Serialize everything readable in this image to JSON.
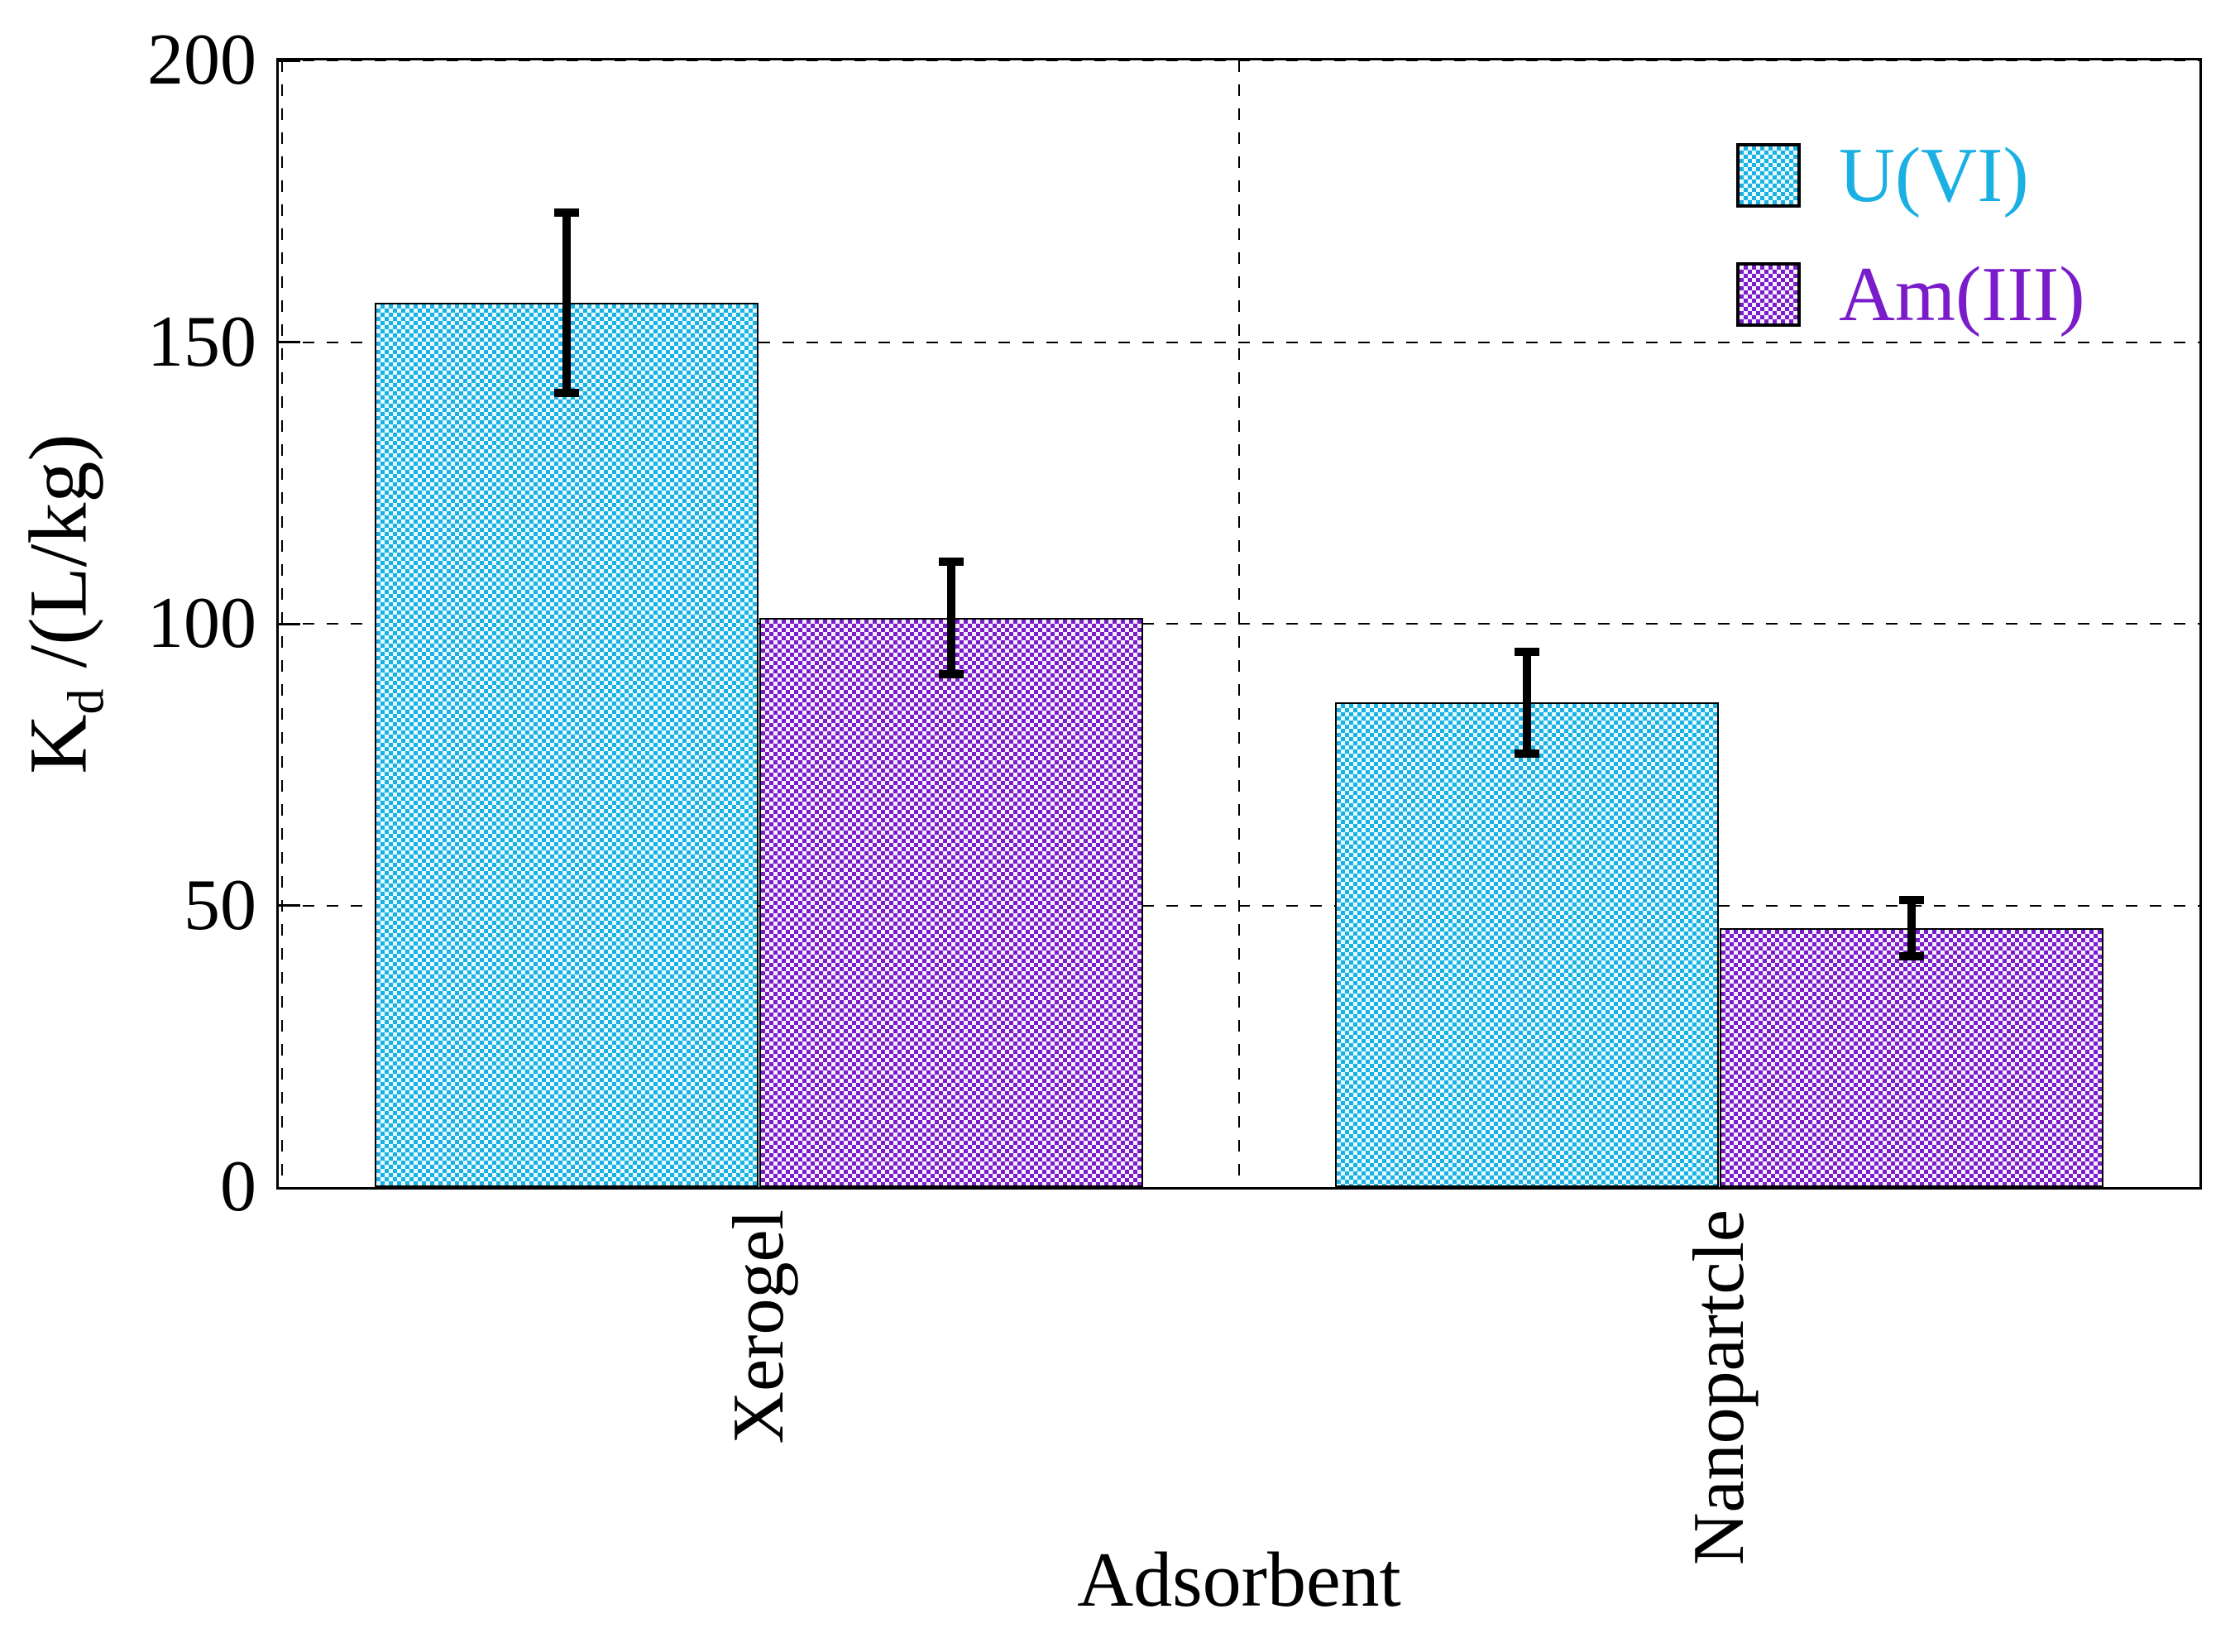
{
  "chart_data": {
    "type": "bar",
    "title": "",
    "xlabel": "Adsorbent",
    "ylabel": "K_d /(L/kg)",
    "ylabel_parts": {
      "main": "K",
      "sub": "d",
      "rest": " /(L/kg)"
    },
    "categories": [
      "Xerogel",
      "Nanopartcle"
    ],
    "series": [
      {
        "name": "U(VI)",
        "color": "#1AB0E3",
        "color_light": "#E7FAFE",
        "pattern": "checkerboard",
        "values": [
          157,
          86
        ],
        "error_plus": [
          16,
          9
        ],
        "error_minus": [
          16,
          9
        ]
      },
      {
        "name": "Am(III)",
        "color": "#7A1CC9",
        "color_light": "#F6F1FE",
        "pattern": "checkerboard",
        "values": [
          101,
          46
        ],
        "error_plus": [
          10,
          5
        ],
        "error_minus": [
          10,
          5
        ]
      }
    ],
    "ylim": [
      0,
      200
    ],
    "yticks": [
      0,
      50,
      100,
      150,
      200
    ],
    "ytick_labels": [
      "0",
      "50",
      "100",
      "150",
      "200"
    ],
    "grid": {
      "horizontal": "dashed",
      "vertical_group_boundaries": "dashed",
      "grid_color": "#000000"
    },
    "legend": {
      "position": "top-right",
      "frame": false,
      "entries": [
        "U(VI)",
        "Am(III)"
      ]
    },
    "bar_width_frac": 0.2,
    "error_bar_color": "#000000",
    "axis_color": "#000000"
  }
}
